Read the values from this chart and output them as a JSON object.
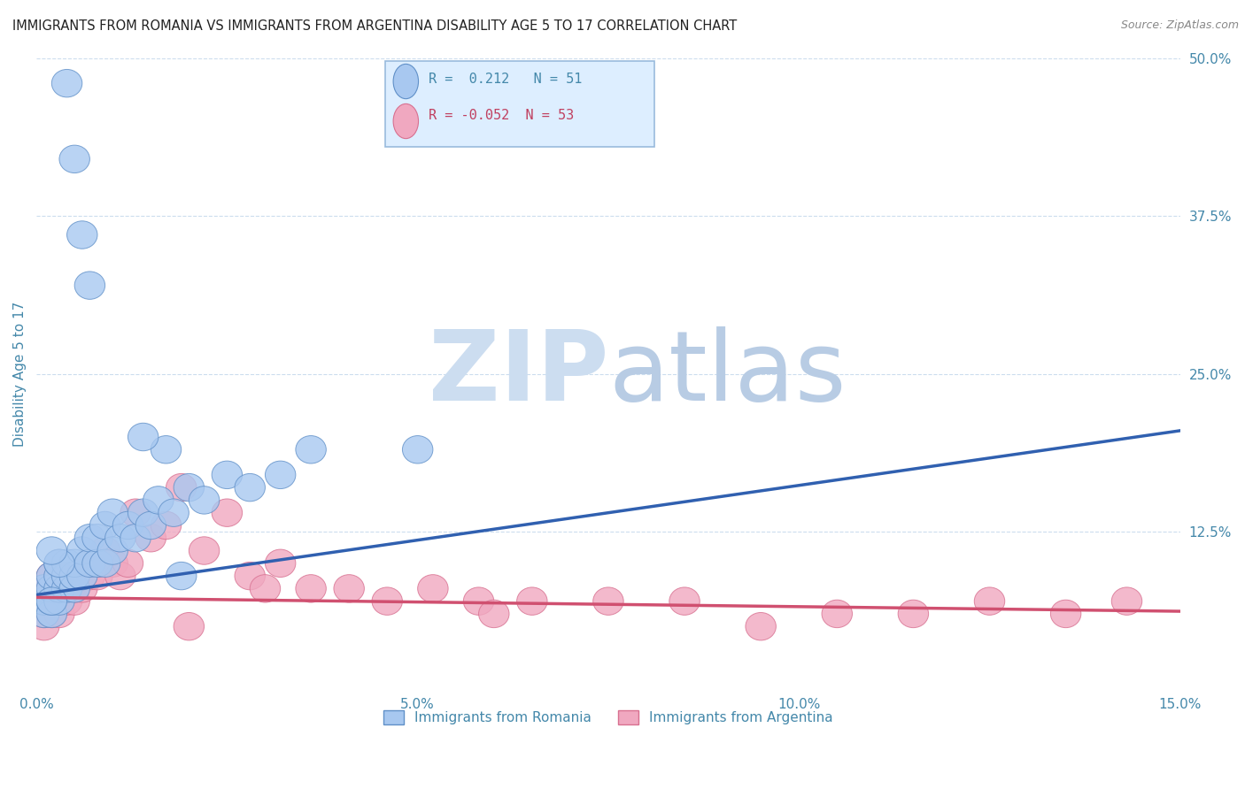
{
  "title": "IMMIGRANTS FROM ROMANIA VS IMMIGRANTS FROM ARGENTINA DISABILITY AGE 5 TO 17 CORRELATION CHART",
  "source": "Source: ZipAtlas.com",
  "ylabel": "Disability Age 5 to 17",
  "xlim": [
    0.0,
    0.15
  ],
  "ylim": [
    0.0,
    0.5
  ],
  "xticks": [
    0.0,
    0.05,
    0.1,
    0.15
  ],
  "xticklabels": [
    "0.0%",
    "5.0%",
    "10.0%",
    "15.0%"
  ],
  "yticks_right": [
    0.0,
    0.125,
    0.25,
    0.375,
    0.5
  ],
  "yticklabels_right": [
    "",
    "12.5%",
    "25.0%",
    "37.5%",
    "50.0%"
  ],
  "romania_R": 0.212,
  "romania_N": 51,
  "argentina_R": -0.052,
  "argentina_N": 53,
  "romania_color": "#a8c8f0",
  "argentina_color": "#f0a8c0",
  "romania_edge_color": "#6090c8",
  "argentina_edge_color": "#d87090",
  "romania_line_color": "#3060b0",
  "argentina_line_color": "#d05070",
  "watermark_zip_color": "#ccddf0",
  "watermark_atlas_color": "#b8cce4",
  "legend_box_color": "#ddeeff",
  "legend_border_color": "#99bbdd",
  "tick_label_color": "#4488aa",
  "ylabel_color": "#4488aa",
  "title_color": "#222222",
  "source_color": "#888888",
  "grid_color": "#ccddee",
  "romania_x": [
    0.001,
    0.001,
    0.001,
    0.002,
    0.002,
    0.002,
    0.002,
    0.003,
    0.003,
    0.003,
    0.003,
    0.004,
    0.004,
    0.004,
    0.005,
    0.005,
    0.005,
    0.006,
    0.006,
    0.007,
    0.007,
    0.008,
    0.008,
    0.009,
    0.009,
    0.01,
    0.01,
    0.011,
    0.012,
    0.013,
    0.014,
    0.015,
    0.016,
    0.018,
    0.02,
    0.022,
    0.025,
    0.028,
    0.032,
    0.036,
    0.017,
    0.014,
    0.019,
    0.007,
    0.006,
    0.005,
    0.004,
    0.003,
    0.002,
    0.002,
    0.05
  ],
  "romania_y": [
    0.06,
    0.07,
    0.08,
    0.06,
    0.07,
    0.08,
    0.09,
    0.07,
    0.08,
    0.09,
    0.1,
    0.08,
    0.09,
    0.1,
    0.08,
    0.09,
    0.1,
    0.09,
    0.11,
    0.1,
    0.12,
    0.1,
    0.12,
    0.1,
    0.13,
    0.11,
    0.14,
    0.12,
    0.13,
    0.12,
    0.14,
    0.13,
    0.15,
    0.14,
    0.16,
    0.15,
    0.17,
    0.16,
    0.17,
    0.19,
    0.19,
    0.2,
    0.09,
    0.32,
    0.36,
    0.42,
    0.48,
    0.1,
    0.11,
    0.07,
    0.19
  ],
  "argentina_x": [
    0.001,
    0.001,
    0.001,
    0.001,
    0.002,
    0.002,
    0.002,
    0.002,
    0.003,
    0.003,
    0.003,
    0.003,
    0.004,
    0.004,
    0.004,
    0.005,
    0.005,
    0.005,
    0.006,
    0.006,
    0.007,
    0.007,
    0.008,
    0.008,
    0.009,
    0.01,
    0.011,
    0.012,
    0.013,
    0.015,
    0.017,
    0.019,
    0.022,
    0.025,
    0.028,
    0.032,
    0.036,
    0.041,
    0.046,
    0.052,
    0.058,
    0.065,
    0.075,
    0.085,
    0.095,
    0.105,
    0.115,
    0.125,
    0.135,
    0.143,
    0.02,
    0.03,
    0.06
  ],
  "argentina_y": [
    0.05,
    0.06,
    0.07,
    0.08,
    0.06,
    0.07,
    0.08,
    0.09,
    0.07,
    0.08,
    0.06,
    0.09,
    0.07,
    0.08,
    0.09,
    0.07,
    0.08,
    0.09,
    0.08,
    0.09,
    0.09,
    0.1,
    0.09,
    0.1,
    0.11,
    0.1,
    0.09,
    0.1,
    0.14,
    0.12,
    0.13,
    0.16,
    0.11,
    0.14,
    0.09,
    0.1,
    0.08,
    0.08,
    0.07,
    0.08,
    0.07,
    0.07,
    0.07,
    0.07,
    0.05,
    0.06,
    0.06,
    0.07,
    0.06,
    0.07,
    0.05,
    0.08,
    0.06
  ],
  "romania_line_x": [
    0.0,
    0.15
  ],
  "romania_line_y": [
    0.075,
    0.205
  ],
  "argentina_line_x": [
    0.0,
    0.15
  ],
  "argentina_line_y": [
    0.073,
    0.062
  ]
}
